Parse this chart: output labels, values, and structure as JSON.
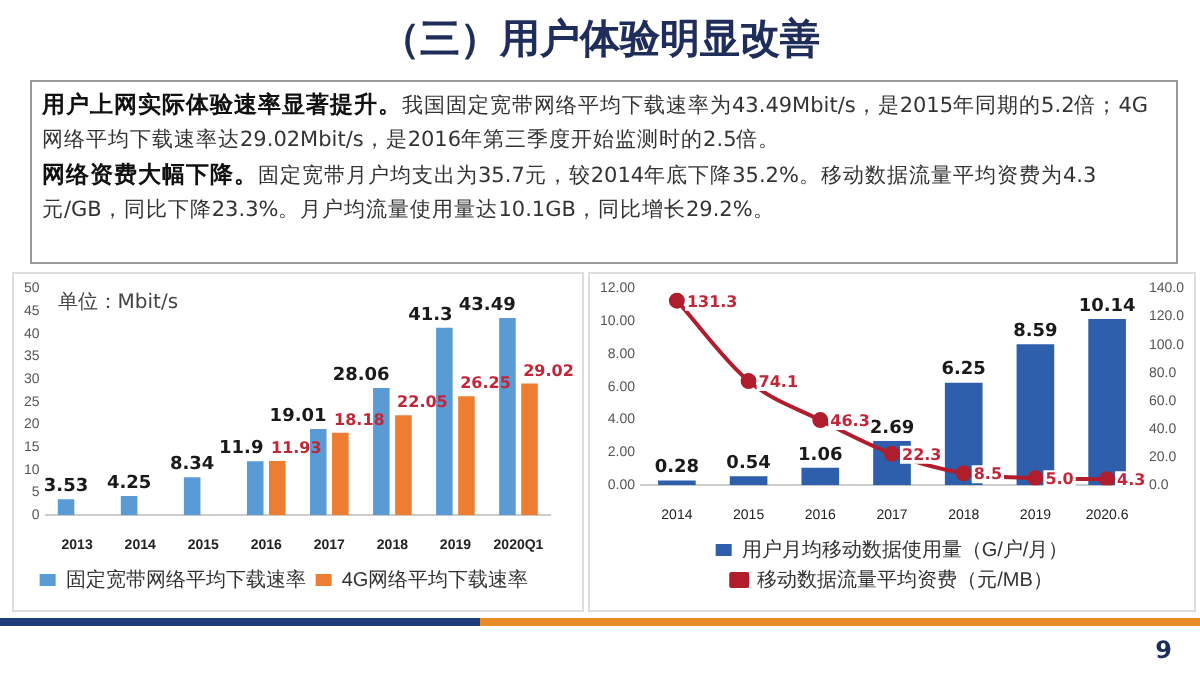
{
  "chart_data": [
    {
      "type": "other",
      "title": "（三）用户体验明显改善",
      "annotations": [
        "用户上网实际体验速率显著提升。",
        "我国固定宽带网络平均下载速率为43.49Mbit/s，是2015年同期的5.2倍；4G网络平均下载速率达29.02Mbit/s，是2016年第三季度开始监测时的2.5倍。",
        "网络资费大幅下降。",
        "固定宽带月户均支出为35.7元，较2014年底下降35.2%。移动数据流量平均资费为4.3元/GB，同比下降23.3%。月户均流量使用量达10.1GB，同比增长29.2%。",
        "9"
      ]
    },
    {
      "type": "bar",
      "annotations": [
        "单位：Mbit/s"
      ],
      "categories": [
        "2013",
        "2014",
        "2015",
        "2016",
        "2017",
        "2018",
        "2019",
        "2020Q1"
      ],
      "series": [
        {
          "name": "固定宽带网络平均下载速率",
          "color": "#5b9bd5",
          "values": [
            3.53,
            4.25,
            8.34,
            11.9,
            19.01,
            28.06,
            41.3,
            43.49
          ]
        },
        {
          "name": "4G网络平均下载速率",
          "color": "#ed7d31",
          "values": [
            null,
            null,
            null,
            11.93,
            18.18,
            22.05,
            26.25,
            29.02
          ]
        }
      ],
      "ylim": [
        0,
        50
      ],
      "yticks": [
        0,
        5,
        10,
        15,
        20,
        25,
        30,
        35,
        40,
        45,
        50
      ],
      "data_labels": true,
      "grid": false,
      "legend": "bottom"
    },
    {
      "type": "bar",
      "categories": [
        "2014",
        "2015",
        "2016",
        "2017",
        "2018",
        "2019",
        "2020.6"
      ],
      "series": [
        {
          "name": "用户月均移动数据使用量（G/户/月）",
          "color": "#2e5fad",
          "values": [
            0.28,
            0.54,
            1.06,
            2.69,
            6.25,
            8.59,
            10.14
          ],
          "value_labels": [
            "0.28",
            "0.54",
            "1.06",
            "2.69",
            "6.25",
            "8.59",
            "10.14"
          ]
        },
        {
          "type": "line",
          "axis": "y2",
          "name": "移动数据流量平均资费（元/MB）",
          "color": "#b01e2e",
          "values": [
            131.3,
            74.1,
            46.3,
            22.3,
            8.5,
            5.0,
            4.3
          ],
          "value_labels": [
            "131.3",
            "74.1",
            "46.3",
            "22.3",
            "8.5",
            "5.0",
            "4.3"
          ]
        }
      ],
      "ylim": [
        0,
        12
      ],
      "yticks": [
        {
          "value": 0,
          "label": "0.00"
        },
        {
          "value": 2,
          "label": "2.00"
        },
        {
          "value": 4,
          "label": "4.00"
        },
        {
          "value": 6,
          "label": "6.00"
        },
        {
          "value": 8,
          "label": "8.00"
        },
        {
          "value": 10,
          "label": "10.00"
        },
        {
          "value": 12,
          "label": "12.00"
        }
      ],
      "y2lim": [
        0,
        140
      ],
      "y2ticks": [
        {
          "value": 0,
          "label": "0.0"
        },
        {
          "value": 20,
          "label": "20.0"
        },
        {
          "value": 40,
          "label": "40.0"
        },
        {
          "value": 60,
          "label": "60.0"
        },
        {
          "value": 80,
          "label": "80.0"
        },
        {
          "value": 100,
          "label": "100.0"
        },
        {
          "value": 120,
          "label": "120.0"
        },
        {
          "value": 140,
          "label": "140.0"
        }
      ],
      "marker": "circle",
      "grid": false,
      "legend": "bottom"
    }
  ]
}
